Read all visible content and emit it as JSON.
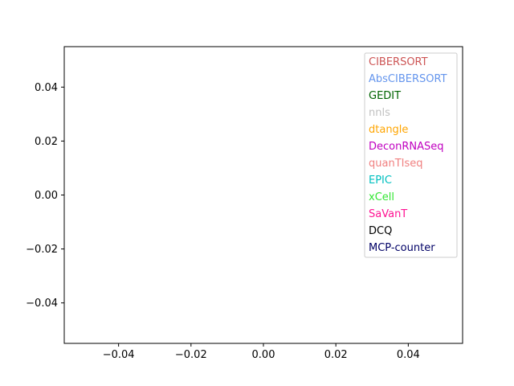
{
  "chart_data": {
    "type": "scatter",
    "title": "",
    "xlabel": "",
    "ylabel": "",
    "xlim": [
      -0.055,
      0.055
    ],
    "ylim": [
      -0.055,
      0.055
    ],
    "xticks": [
      -0.04,
      -0.02,
      0.0,
      0.02,
      0.04
    ],
    "xtick_labels": [
      "−0.04",
      "−0.02",
      "0.00",
      "0.02",
      "0.04"
    ],
    "yticks": [
      -0.04,
      -0.02,
      0.0,
      0.02,
      0.04
    ],
    "ytick_labels": [
      "−0.04",
      "−0.02",
      "0.00",
      "0.02",
      "0.04"
    ],
    "grid": false,
    "legend_position": "top-right",
    "series": [
      {
        "name": "CIBERSORT",
        "color": "#cd5555",
        "points": []
      },
      {
        "name": "AbsCIBERSORT",
        "color": "#6495ed",
        "points": []
      },
      {
        "name": "GEDIT",
        "color": "#006400",
        "points": []
      },
      {
        "name": "nnls",
        "color": "#c0c0c0",
        "points": []
      },
      {
        "name": "dtangle",
        "color": "#ffa500",
        "points": []
      },
      {
        "name": "DeconRNASeq",
        "color": "#c000c0",
        "points": []
      },
      {
        "name": "quanTIseq",
        "color": "#f08080",
        "points": []
      },
      {
        "name": "EPIC",
        "color": "#00c0c0",
        "points": []
      },
      {
        "name": "xCell",
        "color": "#32e632",
        "points": []
      },
      {
        "name": "SaVanT",
        "color": "#ff1493",
        "points": []
      },
      {
        "name": "DCQ",
        "color": "#000000",
        "points": []
      },
      {
        "name": "MCP-counter",
        "color": "#000066",
        "points": []
      }
    ]
  }
}
